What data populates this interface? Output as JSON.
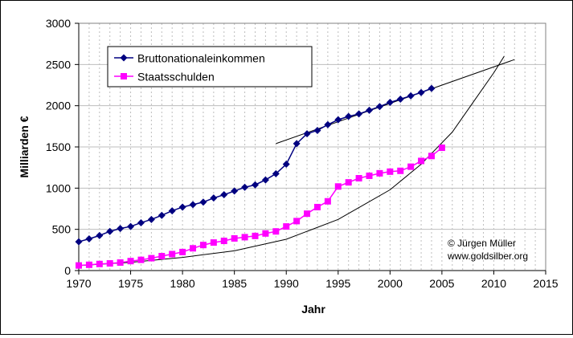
{
  "chart_data": {
    "type": "line",
    "title": "",
    "xlabel": "Jahr",
    "ylabel": "Milliarden €",
    "xlim": [
      1970,
      2015
    ],
    "ylim": [
      0,
      3000
    ],
    "x_ticks": [
      1970,
      1975,
      1980,
      1985,
      1990,
      1995,
      2000,
      2005,
      2010,
      2015
    ],
    "y_ticks": [
      0,
      500,
      1000,
      1500,
      2000,
      2500,
      3000
    ],
    "grid": {
      "horizontal": "solid",
      "vertical": "dashed-yearly"
    },
    "legend": {
      "placement": "top-left-inside"
    },
    "series": [
      {
        "name": "Bruttonationaleinkommen",
        "color": "#000080",
        "marker": "diamond",
        "x": [
          1970,
          1971,
          1972,
          1973,
          1974,
          1975,
          1976,
          1977,
          1978,
          1979,
          1980,
          1981,
          1982,
          1983,
          1984,
          1985,
          1986,
          1987,
          1988,
          1989,
          1990,
          1991,
          1992,
          1993,
          1994,
          1995,
          1996,
          1997,
          1998,
          1999,
          2000,
          2001,
          2002,
          2003,
          2004
        ],
        "values": [
          350,
          385,
          425,
          475,
          510,
          535,
          580,
          620,
          670,
          725,
          770,
          800,
          830,
          880,
          920,
          965,
          1010,
          1040,
          1100,
          1175,
          1290,
          1540,
          1660,
          1700,
          1770,
          1830,
          1870,
          1900,
          1945,
          1990,
          2040,
          2080,
          2120,
          2160,
          2210
        ]
      },
      {
        "name": "Staatsschulden",
        "color": "#ff00ff",
        "marker": "square",
        "x": [
          1970,
          1971,
          1972,
          1973,
          1974,
          1975,
          1976,
          1977,
          1978,
          1979,
          1980,
          1981,
          1982,
          1983,
          1984,
          1985,
          1986,
          1987,
          1988,
          1989,
          1990,
          1991,
          1992,
          1993,
          1994,
          1995,
          1996,
          1997,
          1998,
          1999,
          2000,
          2001,
          2002,
          2003,
          2004,
          2005
        ],
        "values": [
          62,
          70,
          80,
          87,
          97,
          115,
          130,
          150,
          175,
          200,
          225,
          270,
          310,
          340,
          360,
          390,
          405,
          420,
          450,
          475,
          535,
          600,
          690,
          770,
          840,
          1020,
          1070,
          1120,
          1150,
          1180,
          1200,
          1210,
          1260,
          1330,
          1390,
          1490
        ]
      }
    ],
    "trend_lines": [
      {
        "color": "#000000",
        "x": [
          1989,
          2012
        ],
        "values": [
          1540,
          2560
        ]
      },
      {
        "color": "#000000",
        "x": [
          1970,
          1975,
          1980,
          1985,
          1990,
          1995,
          2000,
          2003,
          2006,
          2008,
          2010,
          2011
        ],
        "values": [
          60,
          100,
          160,
          240,
          380,
          620,
          980,
          1290,
          1680,
          2040,
          2400,
          2600
        ]
      }
    ],
    "annotation": {
      "line1": "© Jürgen Müller",
      "line2": "www.goldsilber.org"
    }
  }
}
